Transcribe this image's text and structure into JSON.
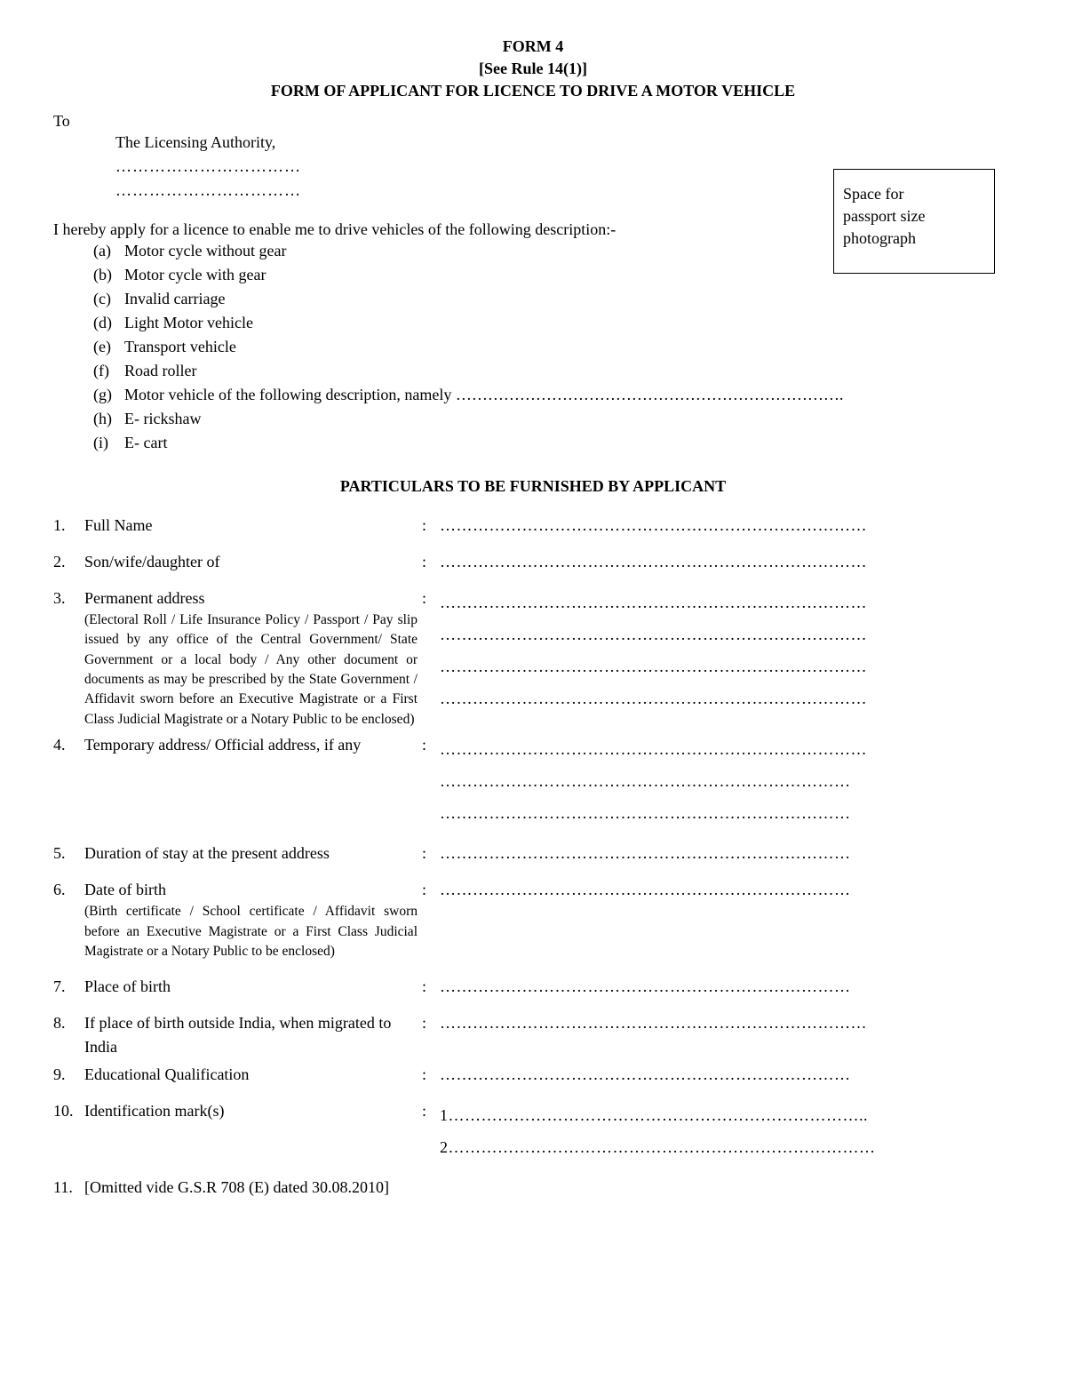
{
  "header": {
    "line1": "FORM 4",
    "line2": "[See Rule 14(1)]",
    "line3": "FORM OF APPLICANT FOR LICENCE TO DRIVE A MOTOR VEHICLE"
  },
  "to_label": "To",
  "to_authority": "The Licensing Authority,",
  "to_dots1": "……………………………",
  "to_dots2": "……………………………",
  "photo_box": {
    "line1": "Space for",
    "line2": "passport size",
    "line3": "photograph"
  },
  "apply_text": "I hereby apply for a licence to enable me to drive vehicles of the following description:-",
  "vehicles": [
    {
      "marker": "(a)",
      "text": "Motor cycle without gear"
    },
    {
      "marker": "(b)",
      "text": "Motor cycle with gear"
    },
    {
      "marker": "(c)",
      "text": "Invalid carriage"
    },
    {
      "marker": "(d)",
      "text": "Light Motor vehicle"
    },
    {
      "marker": "(e)",
      "text": "Transport vehicle"
    },
    {
      "marker": "(f)",
      "text": "Road roller"
    },
    {
      "marker": "(g)",
      "text": "Motor vehicle of the following description, namely ………………………………………………………………."
    },
    {
      "marker": "(h)",
      "text": "E- rickshaw"
    },
    {
      "marker": "(i)",
      "text": "E- cart"
    }
  ],
  "section_title": "PARTICULARS TO BE FURNISHED BY APPLICANT",
  "particulars": {
    "p1": {
      "num": "1.",
      "label": "Full Name",
      "value": "……………………………………………………………………"
    },
    "p2": {
      "num": "2.",
      "label": "Son/wife/daughter of",
      "value": "……………………………………………………………………"
    },
    "p3": {
      "num": "3.",
      "label": "Permanent address",
      "sub": "(Electoral Roll / Life Insurance Policy / Passport / Pay slip issued by any office of the Central Government/ State Government or a local body / Any other document or documents as may be prescribed by the State Government / Affidavit sworn before an Executive Magistrate or a First Class Judicial Magistrate or a Notary Public to be enclosed)",
      "v1": "……………………………………………………………………",
      "v2": "……………………………………………………………………",
      "v3": "……………………………………………………………………",
      "v4": "……………………………………………………………………"
    },
    "p4": {
      "num": "4.",
      "label": "Temporary address/ Official address, if any",
      "v1": "……………………………………………………………………",
      "v2": "…………………………………………………………………",
      "v3": "…………………………………………………………………"
    },
    "p5": {
      "num": "5.",
      "label": "Duration of stay at the present address",
      "value": "…………………………………………………………………"
    },
    "p6": {
      "num": "6.",
      "label": "Date of birth",
      "sub": "(Birth certificate / School certificate / Affidavit sworn before an Executive Magistrate or a First Class Judicial Magistrate or a Notary Public to be enclosed)",
      "value": "…………………………………………………………………"
    },
    "p7": {
      "num": "7.",
      "label": "Place of birth",
      "value": "…………………………………………………………………"
    },
    "p8": {
      "num": "8.",
      "label": "If place of birth outside India, when migrated to India",
      "value": "……………………………………………………………………"
    },
    "p9": {
      "num": "9.",
      "label": "Educational Qualification",
      "value": "…………………………………………………………………"
    },
    "p10": {
      "num": "10.",
      "label": "Identification mark(s)",
      "v1": "1…………………………………………………………………..",
      "v2": "2……………………………………………………………………"
    },
    "p11": {
      "num": "11.",
      "label": "[Omitted vide G.S.R 708 (E) dated 30.08.2010]"
    }
  }
}
